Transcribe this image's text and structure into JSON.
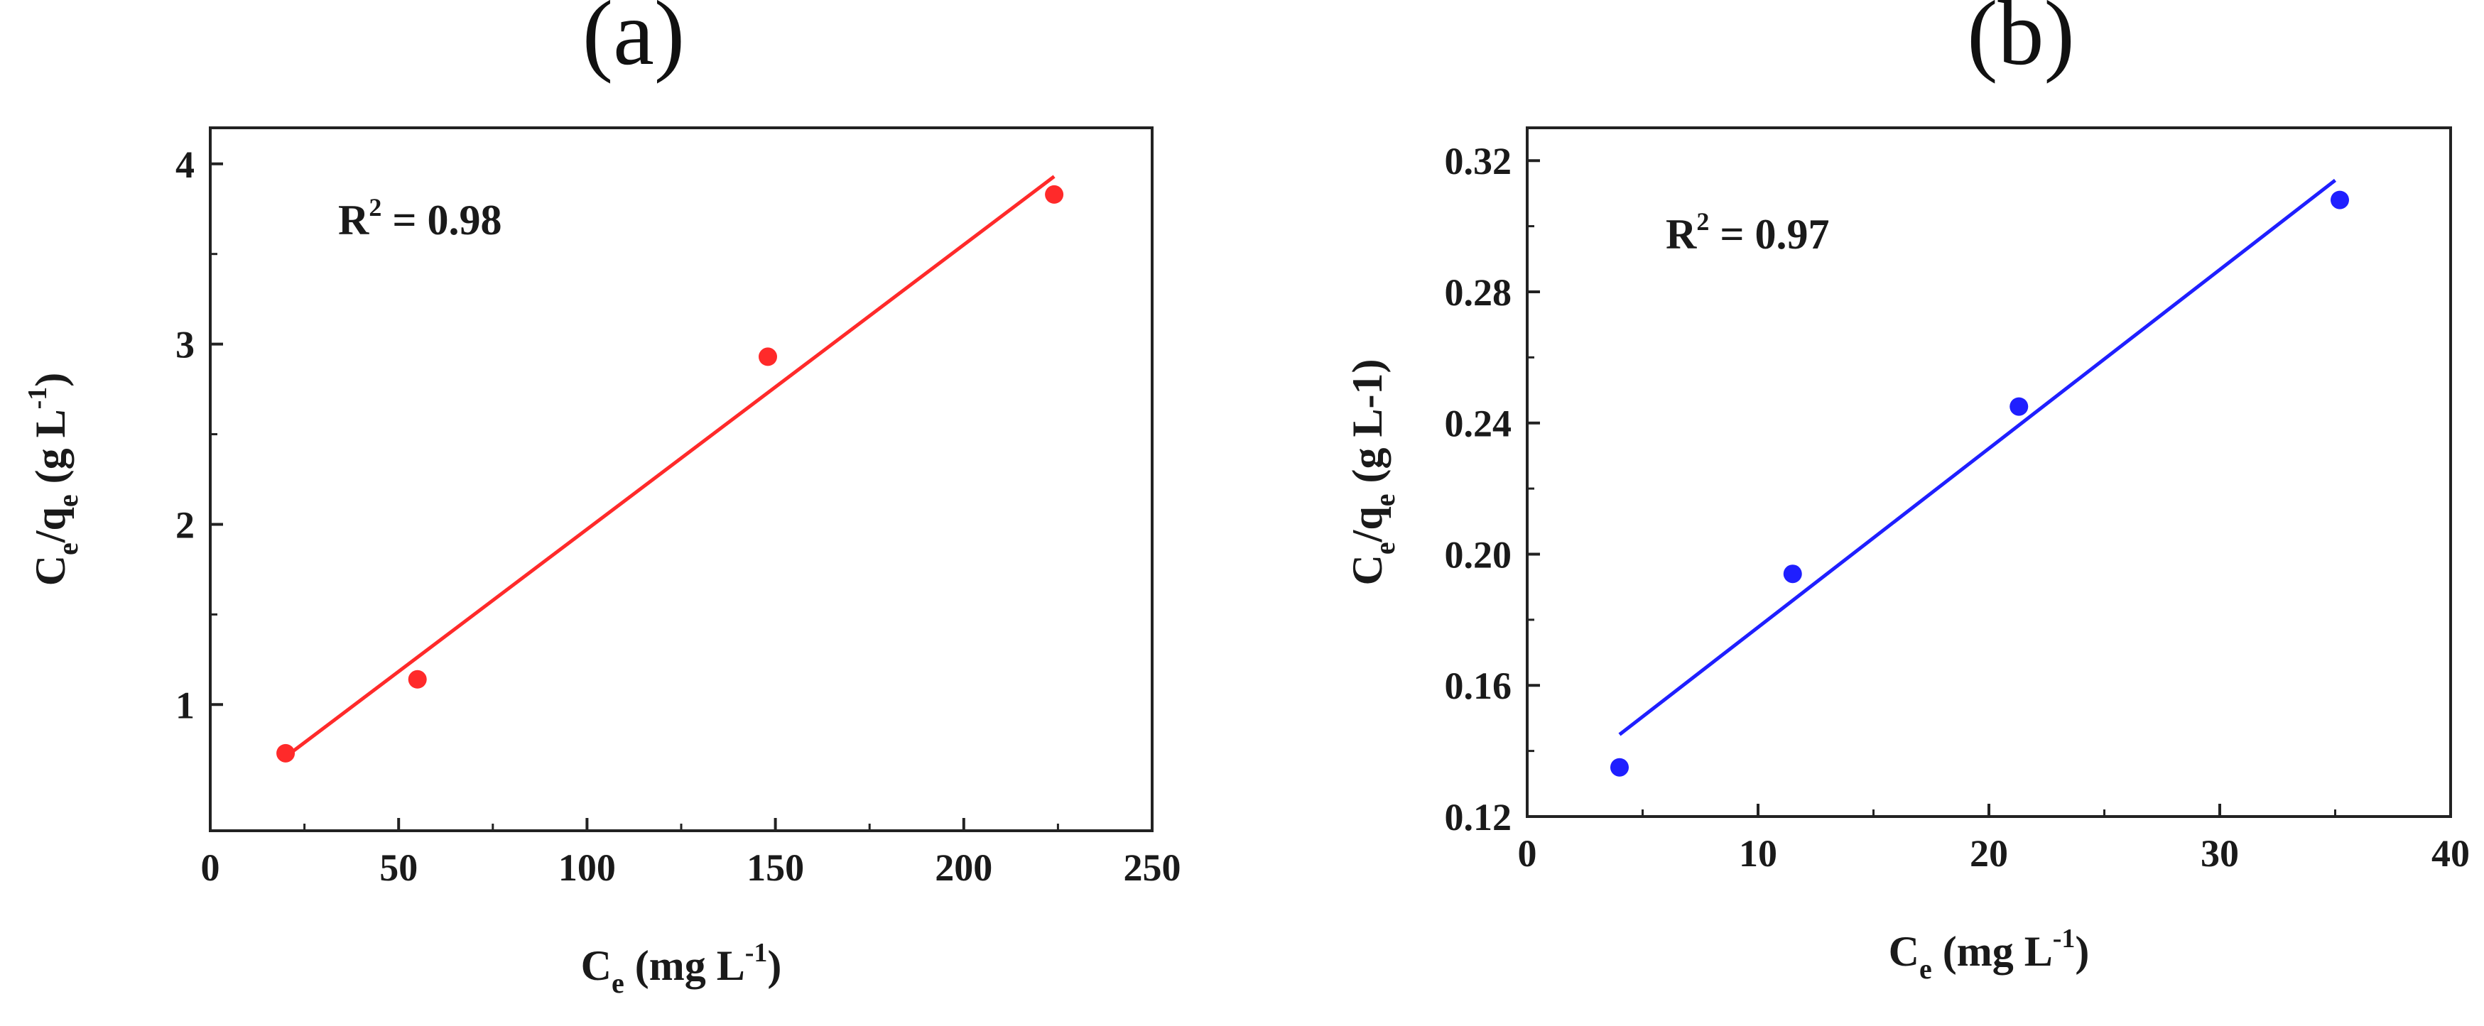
{
  "chart_data": [
    {
      "type": "scatter",
      "panel_label": "(a)",
      "annotation": {
        "r2_label": "R",
        "r2_exp": "2",
        "r2_value": " = 0.98"
      },
      "xlabel": {
        "main": "C",
        "sub": "e",
        "units": "(mg L",
        "exp": "-1",
        "close": ")"
      },
      "ylabel": {
        "main": "C",
        "sub": "e",
        "slash": "/q",
        "sub2": "e",
        "units": " (g L",
        "exp": "-1",
        "close": ")"
      },
      "xlim": [
        0,
        250
      ],
      "ylim": [
        0.3,
        4.2
      ],
      "xticks": [
        0,
        50,
        100,
        150,
        200,
        250
      ],
      "yticks": [
        1,
        2,
        3,
        4
      ],
      "grid": false,
      "color": "#ff2a2a",
      "series": [
        {
          "points": [
            [
              20,
              0.73
            ],
            [
              55,
              1.14
            ],
            [
              148,
              2.93
            ],
            [
              224,
              3.83
            ]
          ]
        }
      ],
      "fit_line": {
        "x": [
          20,
          224
        ],
        "y": [
          0.71,
          3.93
        ]
      }
    },
    {
      "type": "scatter",
      "panel_label": "(b)",
      "annotation": {
        "r2_label": "R",
        "r2_exp": "2",
        "r2_value": " = 0.97"
      },
      "xlabel": {
        "main": "C",
        "sub": "e",
        "units": "  (mg L",
        "exp": "-1",
        "close": ")"
      },
      "ylabel": {
        "main": "C",
        "sub": "e",
        "slash": "/q",
        "sub2": "e",
        "units": " (g L-1)",
        "exp": "",
        "close": ""
      },
      "xlim": [
        0,
        40
      ],
      "ylim": [
        0.12,
        0.33
      ],
      "xticks": [
        0,
        10,
        20,
        30,
        40
      ],
      "yticks": [
        0.12,
        0.16,
        0.2,
        0.24,
        0.28,
        0.32
      ],
      "ytick_labels": [
        "0.12",
        "0.16",
        "0.20",
        "0.24",
        "0.28",
        "0.32"
      ],
      "grid": false,
      "color": "#1f1fff",
      "series": [
        {
          "points": [
            [
              4.0,
              0.135
            ],
            [
              11.5,
              0.194
            ],
            [
              21.3,
              0.245
            ],
            [
              35.2,
              0.308
            ]
          ]
        }
      ],
      "fit_line": {
        "x": [
          4.0,
          35.0
        ],
        "y": [
          0.145,
          0.314
        ]
      }
    }
  ]
}
